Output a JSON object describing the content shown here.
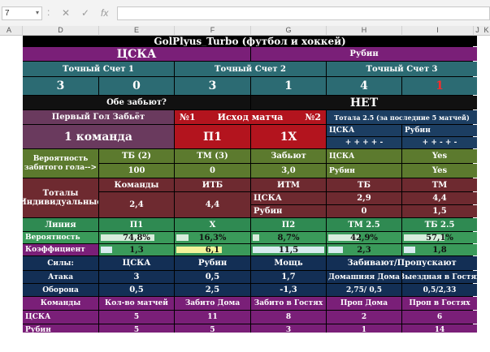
{
  "formula_bar": {
    "name_box": "7",
    "sep": ":",
    "cancel_icon": "✕",
    "confirm_icon": "✓",
    "fx_label": "fx",
    "formula_value": ""
  },
  "column_headers": [
    "A",
    "D",
    "E",
    "F",
    "G",
    "H",
    "I",
    "J",
    "K"
  ],
  "sheet": {
    "title": "GolPlyus_Turbo (футбол и хоккей)",
    "home_team": "ЦСКА",
    "away_team": "Рубин",
    "exact_score_1": "Точный Счет 1",
    "exact_score_2": "Точный Счет 2",
    "exact_score_3": "Точный Счет 3",
    "score_values": [
      "3",
      "0",
      "3",
      "1",
      "4",
      "1"
    ],
    "both_score_label": "Обе забьют?",
    "both_score_value": "НЕТ",
    "first_goal_label": "Первый Гол Забьёт",
    "outcome_n1": "№1",
    "outcome_label": "Исход матча",
    "outcome_n2": "№2",
    "totals_last5_label": "Тотала 2.5 (за последние 5 матчей)",
    "first_goal_value": "1 команда",
    "outcome_value_1": "П1",
    "outcome_value_2": "1Х",
    "home_small": "ЦСКА",
    "away_small": "Рубин",
    "home_form": "+ + + + -",
    "away_form": "+ + - + -",
    "tb2_label": "ТБ (2)",
    "tm3_label": "ТМ (3)",
    "scores_label": "Забьют",
    "prob_label": "Вероятность забитого гола-->",
    "tb2_value": "100",
    "tm3_value": "0",
    "scores_value": "3,0",
    "home_yes_label": "ЦСКА",
    "home_yes_value": "Yes",
    "away_yes_label": "Рубин",
    "away_yes_value": "Yes",
    "ind_totals_label": "Тоталы Индивидуальные",
    "teams_label": "Команды",
    "itb_label": "ИТБ",
    "itm_label": "ИТМ",
    "tb_label": "ТБ",
    "tm_label": "ТМ",
    "ind_home": "ЦСКА",
    "ind_home_itb": "2,9",
    "ind_home_itm": "4,4",
    "ind_away": "Рубин",
    "ind_away_itb": "0",
    "ind_away_itm": "1,5",
    "tb_value": "2,4",
    "tm_value": "4,4",
    "line_label": "Линия",
    "line_p1": "П1",
    "line_x": "Х",
    "line_p2": "П2",
    "line_tm25": "ТМ 2.5",
    "line_tb25": "ТБ 2.5",
    "prob_row_label": "Вероятность",
    "prob_p1": "74,8%",
    "prob_x": "16,3%",
    "prob_p2": "8,7%",
    "prob_tm": "42,9%",
    "prob_tb": "57,1%",
    "coef_label": "Коэффициент",
    "coef_p1": "1,3",
    "coef_x": "6,1",
    "coef_p2": "11,5",
    "coef_tm": "2,3",
    "coef_tb": "1,8",
    "strength_label": "Силы:",
    "str_home": "ЦСКА",
    "str_away": "Рубин",
    "power_label": "Мощь",
    "scored_conceded_label": "Забивают/Пропускают",
    "attack_label": "Атака",
    "attack_home": "3",
    "attack_away": "0,5",
    "attack_power": "1,7",
    "home_home_label": "Домашняя Дома",
    "away_away_label": "Выездная в Гостях",
    "defense_label": "Оборона",
    "defense_home": "0,5",
    "defense_away": "2,5",
    "defense_power": "-1,3",
    "def_home_ratio": "2,75/ 0,5",
    "def_away_ratio": "0,5/2,33",
    "teams_label2": "Команды",
    "matches_count_label": "Кол-во матчей",
    "scored_home_label": "Забито Дома",
    "scored_away_label": "Забито в Гостях",
    "conceded_home_label": "Проп Дома",
    "conceded_away_label": "Проп в Гостях",
    "stats_home": [
      "ЦСКА",
      "5",
      "11",
      "8",
      "2",
      "6"
    ],
    "stats_away": [
      "Рубин",
      "5",
      "5",
      "3",
      "1",
      "14"
    ]
  },
  "probabilities": {
    "p1": 0.748,
    "x": 0.163,
    "p2": 0.087,
    "tm": 0.429,
    "tb": 0.571
  },
  "colors": {
    "background": "#000000",
    "accent_red": "#b3141e",
    "magenta": "#7a1f78",
    "teal": "#2c6b73",
    "green": "#2f8a52"
  },
  "icons": [
    "cancel-icon",
    "confirm-icon",
    "fx-icon",
    "dropdown-icon"
  ]
}
